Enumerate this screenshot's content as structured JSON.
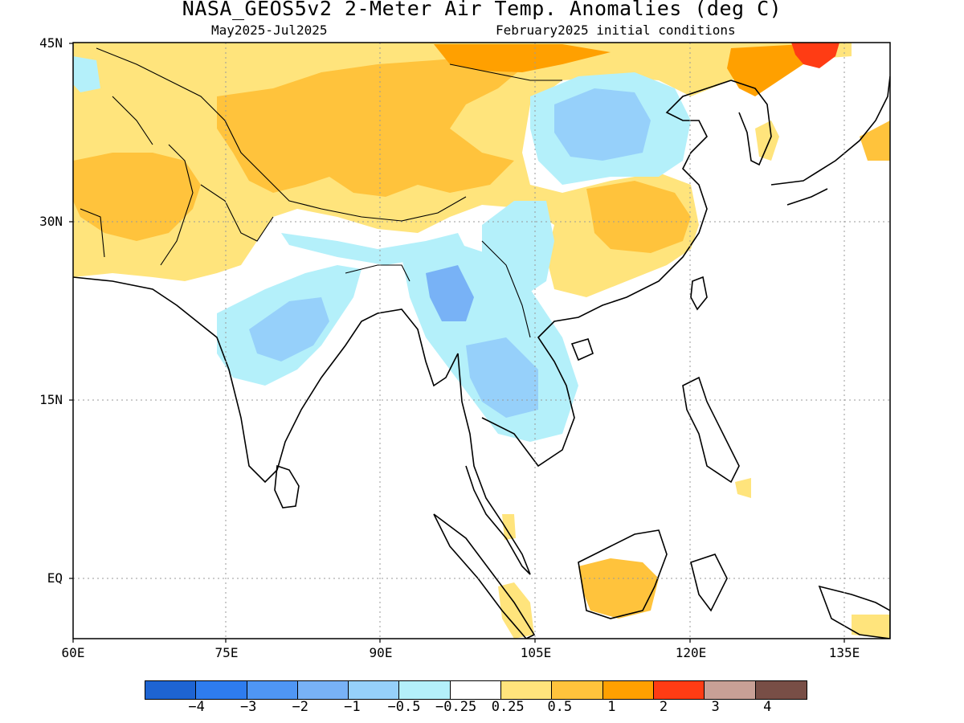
{
  "title": "NASA_GEOS5v2 2-Meter Air Temp. Anomalies (deg C)",
  "subtitle_left": "May2025-Jul2025",
  "subtitle_right": "February2025 initial conditions",
  "y_axis_labels": [
    "45N",
    "30N",
    "15N",
    "EQ"
  ],
  "x_axis_labels": [
    "60E",
    "75E",
    "90E",
    "105E",
    "120E",
    "135E"
  ],
  "colorbar": {
    "colors": [
      "#1e64d2",
      "#2e7cee",
      "#4f96f4",
      "#78b2f6",
      "#96d0fa",
      "#b4f0fa",
      "#ffffff",
      "#ffe47c",
      "#ffc33c",
      "#ffa000",
      "#ff3c14",
      "#c8a096",
      "#784e46"
    ],
    "labels": [
      "-4",
      "-3",
      "-2",
      "-1",
      "-0.5",
      "-0.25",
      "0.25",
      "0.5",
      "1",
      "2",
      "3",
      "4"
    ]
  },
  "map_colors": {
    "land_line": "#000000",
    "grid_line": "#9a9a9a",
    "warm_light": "#ffe47c",
    "warm_mid": "#ffc33c",
    "warm_strong": "#ffa000",
    "warm_extreme": "#ff3c14",
    "cool_light": "#b4f0fa",
    "cool_mid": "#96d0fa",
    "cool_strong": "#78b2f6"
  }
}
